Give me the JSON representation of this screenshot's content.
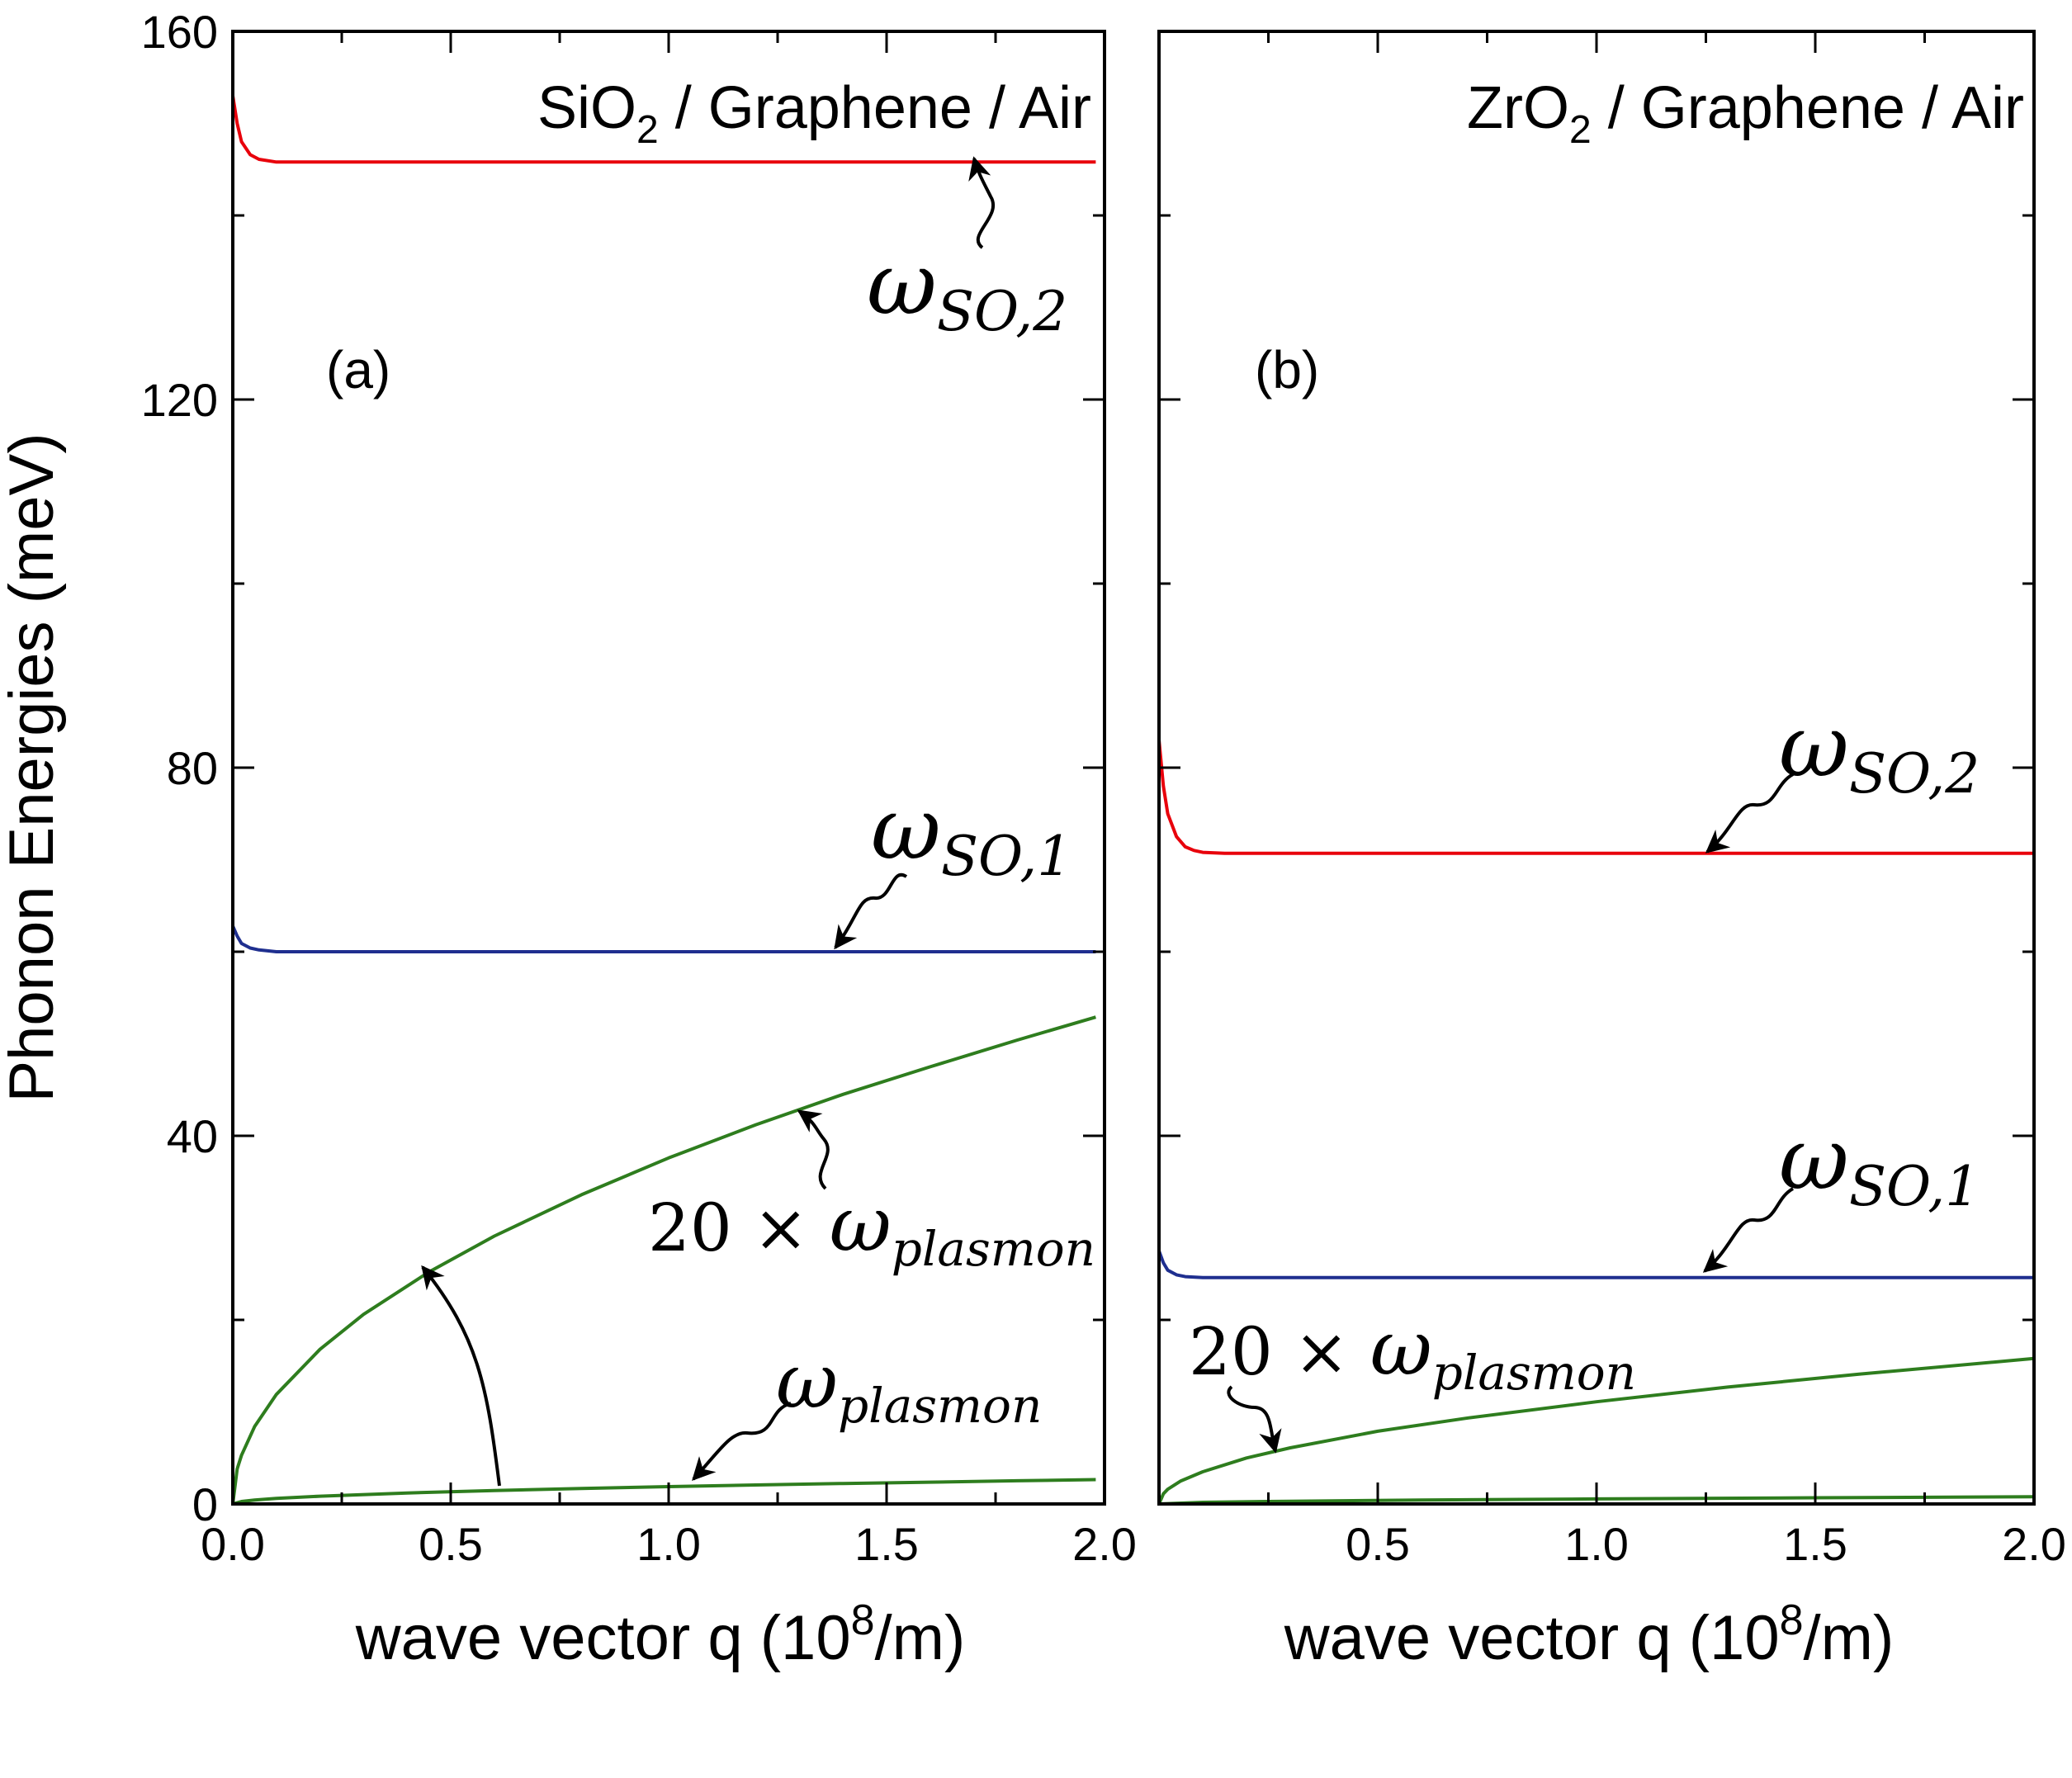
{
  "chart_data": [
    {
      "type": "line",
      "panel_label": "(a)",
      "title": {
        "pre": "SiO",
        "sub": "2",
        "post": " / Graphene / Air"
      },
      "xlabel": {
        "pre": "wave vector q (10",
        "sup": "8",
        "post": "/m)"
      },
      "ylabel": "Phonon Energies (meV)",
      "xlim": [
        0,
        2.0
      ],
      "ylim": [
        0,
        160
      ],
      "xticks": [
        "0.0",
        "0.5",
        "1.0",
        "1.5",
        "2.0"
      ],
      "yticks": [
        "0",
        "40",
        "80",
        "120",
        "160"
      ],
      "grid": false,
      "series": [
        {
          "name": "ω_SO,2",
          "color": "#e8000b",
          "x": [
            0,
            0.01,
            0.02,
            0.04,
            0.06,
            0.1,
            0.2,
            0.5,
            1.0,
            1.5,
            1.98
          ],
          "y": [
            153,
            150,
            148,
            146.6,
            146.1,
            145.8,
            145.8,
            145.8,
            145.8,
            145.8,
            145.8
          ]
        },
        {
          "name": "ω_SO,1",
          "color": "#1f2f8f",
          "x": [
            0,
            0.01,
            0.02,
            0.04,
            0.06,
            0.1,
            0.5,
            1.0,
            1.5,
            1.98
          ],
          "y": [
            62.8,
            61.7,
            60.9,
            60.4,
            60.2,
            60.0,
            60.0,
            60.0,
            60.0,
            60.0
          ]
        },
        {
          "name": "20 × ω_plasmon",
          "color": "#2e7d1e",
          "x": [
            0,
            0.01,
            0.02,
            0.05,
            0.1,
            0.2,
            0.3,
            0.45,
            0.6,
            0.8,
            1.0,
            1.2,
            1.4,
            1.6,
            1.8,
            1.98
          ],
          "y": [
            0,
            3.8,
            5.3,
            8.4,
            11.9,
            16.8,
            20.6,
            25.2,
            29.1,
            33.6,
            37.6,
            41.2,
            44.5,
            47.5,
            50.4,
            52.9
          ]
        },
        {
          "name": "ω_plasmon",
          "color": "#2e7d1e",
          "x": [
            0,
            0.02,
            0.05,
            0.1,
            0.2,
            0.4,
            0.6,
            0.8,
            1.0,
            1.2,
            1.4,
            1.6,
            1.8,
            1.98
          ],
          "y": [
            0,
            0.27,
            0.42,
            0.6,
            0.84,
            1.19,
            1.46,
            1.68,
            1.88,
            2.06,
            2.22,
            2.37,
            2.52,
            2.65
          ]
        }
      ],
      "annotations": [
        {
          "label": "ω_SO,2",
          "sym": "ω",
          "sub": "SO,2"
        },
        {
          "label": "ω_SO,1",
          "sym": "ω",
          "sub": "SO,1"
        },
        {
          "label": "20 × ω_plasmon",
          "pre": "20 × ",
          "sym": "ω",
          "sub": "plasmon"
        },
        {
          "label": "ω_plasmon",
          "sym": "ω",
          "sub": "plasmon"
        }
      ]
    },
    {
      "type": "line",
      "panel_label": "(b)",
      "title": {
        "pre": "ZrO",
        "sub": "2",
        "post": " / Graphene / Air"
      },
      "xlabel": {
        "pre": "wave vector q (10",
        "sup": "8",
        "post": "/m)"
      },
      "xlim": [
        0,
        2.0
      ],
      "ylim": [
        0,
        160
      ],
      "xticks": [
        "0.5",
        "1.0",
        "1.5",
        "2.0"
      ],
      "grid": false,
      "series": [
        {
          "name": "ω_SO,2",
          "color": "#e8000b",
          "x": [
            0,
            0.01,
            0.02,
            0.04,
            0.06,
            0.08,
            0.1,
            0.15,
            0.3,
            0.6,
            1.0,
            1.5,
            2.0
          ],
          "y": [
            83,
            78,
            75,
            72.5,
            71.4,
            71.0,
            70.8,
            70.7,
            70.7,
            70.7,
            70.7,
            70.7,
            70.7
          ]
        },
        {
          "name": "ω_SO,1",
          "color": "#1f2f8f",
          "x": [
            0,
            0.01,
            0.02,
            0.04,
            0.06,
            0.1,
            0.2,
            0.5,
            1.0,
            1.5,
            2.0
          ],
          "y": [
            27.5,
            26.2,
            25.4,
            24.9,
            24.7,
            24.6,
            24.6,
            24.6,
            24.6,
            24.6,
            24.6
          ]
        },
        {
          "name": "20 × ω_plasmon",
          "color": "#2e7d1e",
          "x": [
            0,
            0.01,
            0.02,
            0.05,
            0.1,
            0.2,
            0.3,
            0.5,
            0.7,
            1.0,
            1.3,
            1.6,
            2.0
          ],
          "y": [
            0,
            1.1,
            1.6,
            2.5,
            3.5,
            5.0,
            6.1,
            7.9,
            9.3,
            11.1,
            12.7,
            14.1,
            15.8
          ]
        },
        {
          "name": "ω_plasmon",
          "color": "#2e7d1e",
          "x": [
            0,
            0.1,
            0.3,
            0.6,
            1.0,
            1.5,
            2.0
          ],
          "y": [
            0,
            0.18,
            0.3,
            0.42,
            0.55,
            0.67,
            0.79
          ]
        }
      ],
      "annotations": [
        {
          "label": "ω_SO,2",
          "sym": "ω",
          "sub": "SO,2"
        },
        {
          "label": "ω_SO,1",
          "sym": "ω",
          "sub": "SO,1"
        },
        {
          "label": "20 × ω_plasmon",
          "pre": "20 × ",
          "sym": "ω",
          "sub": "plasmon"
        }
      ]
    }
  ]
}
